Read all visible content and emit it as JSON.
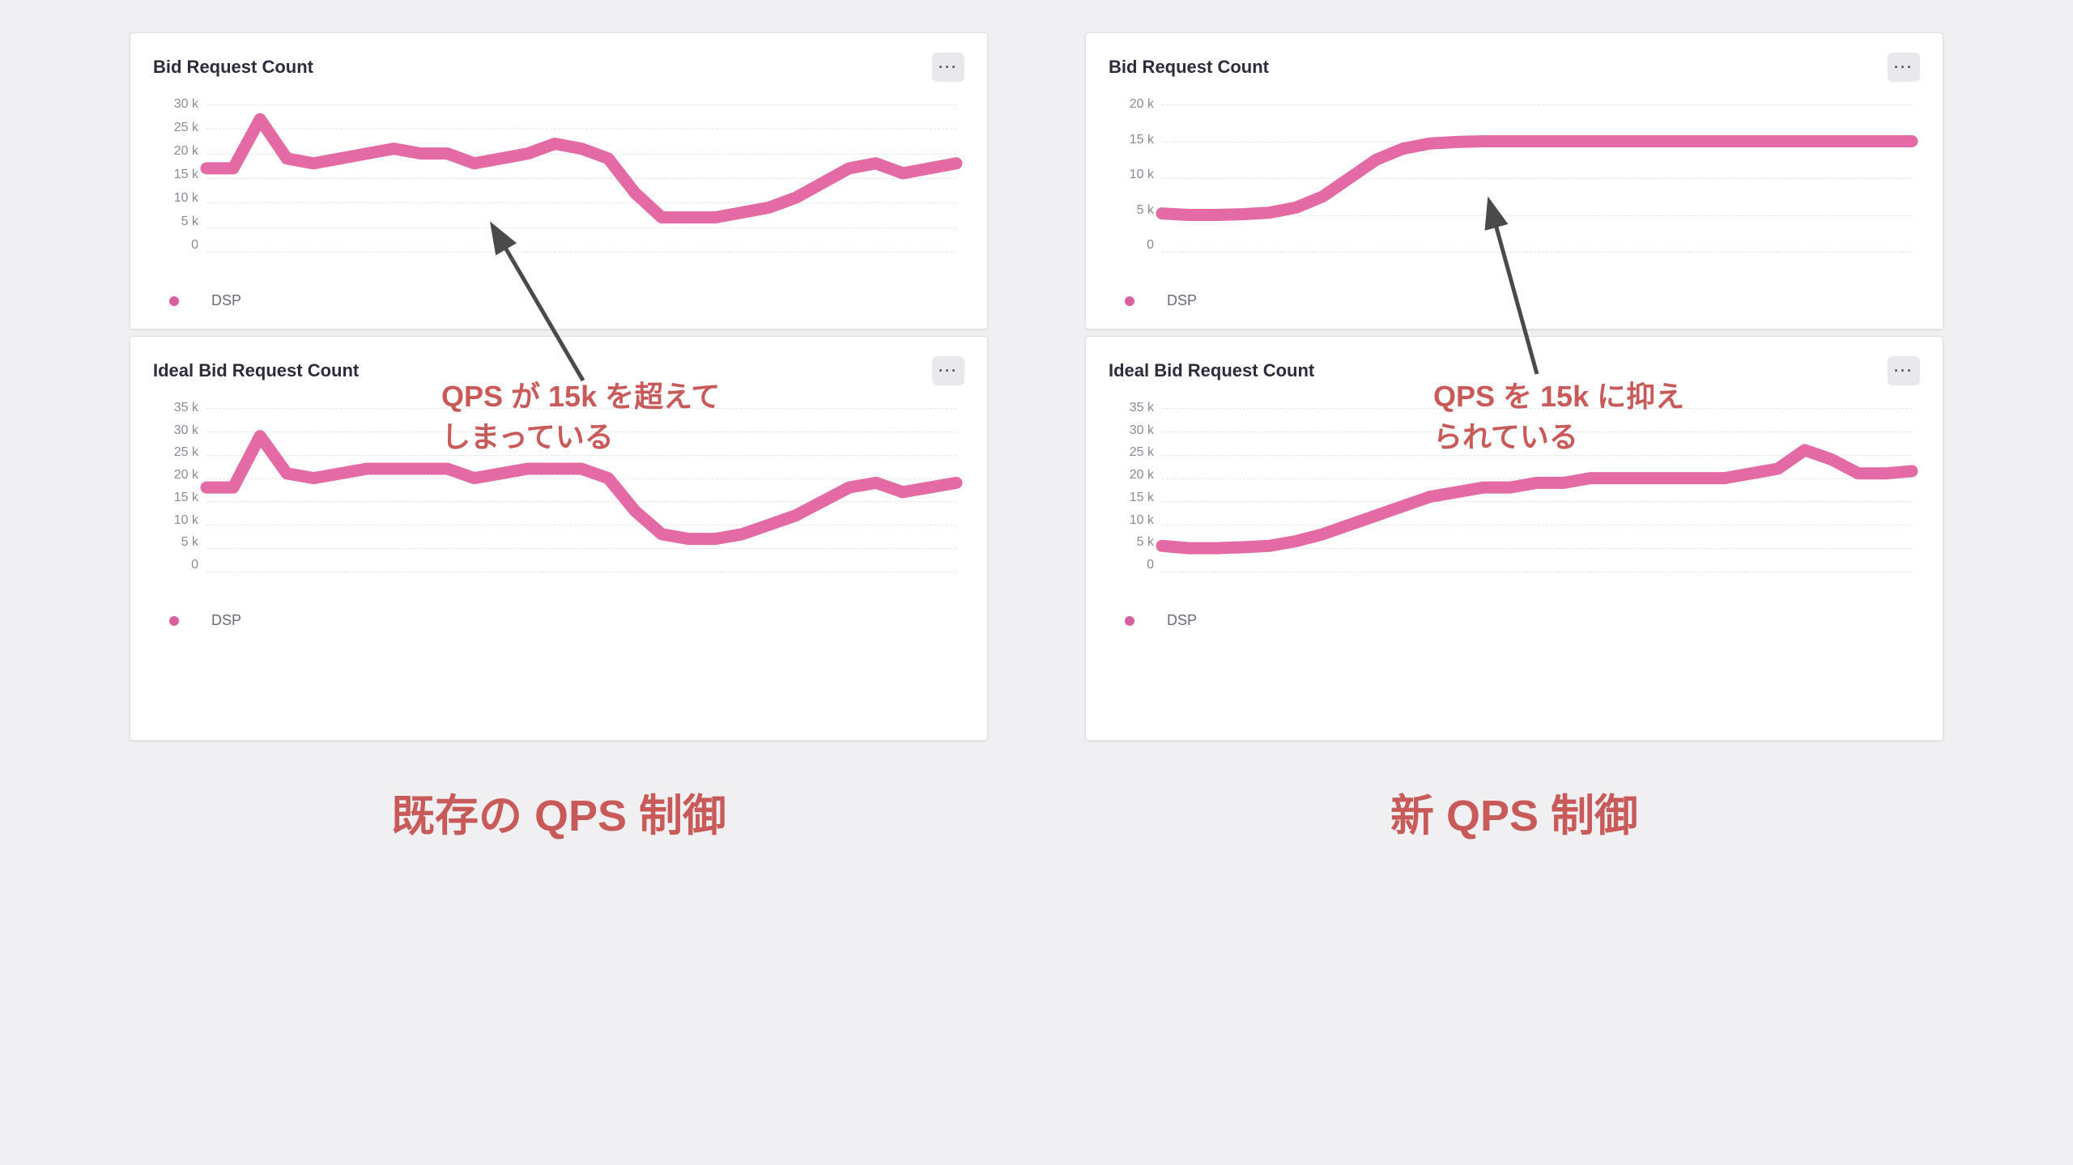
{
  "colors": {
    "accent": "#d65991",
    "annotation_text": "#c85a5a",
    "arrow": "#4a4a4a",
    "tick_text": "#8a8a96",
    "legend_dot": "#d85fa0",
    "grid": "#e4e4ea",
    "panel_bg": "#ffffff",
    "page_bg": "#f0f0f2"
  },
  "left": {
    "footer": "既存の QPS 制御",
    "annotation": "QPS が 15k を超えて\nしまっている",
    "panels": [
      {
        "id": "left-top",
        "title": "Bid Request Count",
        "legend": "DSP",
        "ymax": 30,
        "yticks": [
          "30 k",
          "25 k",
          "20 k",
          "15 k",
          "10 k",
          "5 k",
          "0"
        ],
        "series": [
          17,
          17,
          27,
          19,
          18,
          19,
          20,
          21,
          20,
          20,
          18,
          19,
          20,
          22,
          21,
          19,
          12,
          7,
          7,
          7,
          8,
          9,
          11,
          14,
          17,
          18,
          16,
          17,
          18
        ],
        "line_color": "#e36aa5",
        "line_width": 2.5
      },
      {
        "id": "left-bottom",
        "title": "Ideal Bid Request Count",
        "legend": "DSP",
        "ymax": 35,
        "yticks": [
          "35 k",
          "30 k",
          "25 k",
          "20 k",
          "15 k",
          "10 k",
          "5 k",
          "0"
        ],
        "series": [
          18,
          18,
          29,
          21,
          20,
          21,
          22,
          22,
          22,
          22,
          20,
          21,
          22,
          22,
          22,
          20,
          13,
          8,
          7,
          7,
          8,
          10,
          12,
          15,
          18,
          19,
          17,
          18,
          19
        ],
        "line_color": "#e36aa5",
        "line_width": 2.5
      }
    ]
  },
  "right": {
    "footer": "新 QPS 制御",
    "annotation": "QPS を 15k に抑え\nられている",
    "panels": [
      {
        "id": "right-top",
        "title": "Bid Request Count",
        "legend": "DSP",
        "ymax": 20,
        "yticks": [
          "20 k",
          "15 k",
          "10 k",
          "5 k",
          "0"
        ],
        "series": [
          5.2,
          5.0,
          5.0,
          5.1,
          5.3,
          6.0,
          7.5,
          10,
          12.5,
          14,
          14.7,
          14.9,
          15,
          15,
          15,
          15,
          15,
          15,
          15,
          15,
          15,
          15,
          15,
          15,
          15,
          15,
          15,
          15,
          15
        ],
        "line_color": "#e36aa5",
        "line_width": 2.5
      },
      {
        "id": "right-bottom",
        "title": "Ideal Bid Request Count",
        "legend": "DSP",
        "ymax": 35,
        "yticks": [
          "35 k",
          "30 k",
          "25 k",
          "20 k",
          "15 k",
          "10 k",
          "5 k",
          "0"
        ],
        "series": [
          5.5,
          5.0,
          5.0,
          5.2,
          5.5,
          6.5,
          8,
          10,
          12,
          14,
          16,
          17,
          18,
          18,
          19,
          19,
          20,
          20,
          20,
          20,
          20,
          20,
          21,
          22,
          26,
          24,
          21,
          21,
          21.5
        ],
        "line_color": "#e36aa5",
        "line_width": 2.5
      }
    ]
  }
}
